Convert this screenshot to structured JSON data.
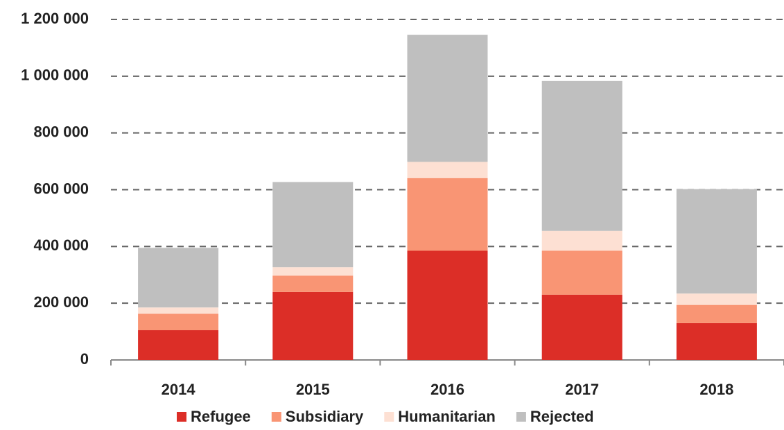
{
  "chart_data": {
    "type": "stacked_bar",
    "categories": [
      "2014",
      "2015",
      "2016",
      "2017",
      "2018"
    ],
    "series": [
      {
        "name": "Refugee",
        "color": "#dc2e27",
        "values": [
          105000,
          240000,
          385000,
          230000,
          130000
        ]
      },
      {
        "name": "Subsidiary",
        "color": "#f99574",
        "values": [
          58000,
          57000,
          256000,
          155000,
          64000
        ]
      },
      {
        "name": "Humanitarian",
        "color": "#fde0d3",
        "values": [
          22000,
          30000,
          57000,
          70000,
          40000
        ]
      },
      {
        "name": "Rejected",
        "color": "#bfbfbf",
        "values": [
          210000,
          300000,
          448000,
          528000,
          368000
        ]
      }
    ],
    "ylim": [
      0,
      1200000
    ],
    "yticks": [
      0,
      {
        "value": 200000,
        "label": "200 000"
      },
      {
        "value": 400000,
        "label": "400 000"
      },
      {
        "value": 600000,
        "label": "600 000"
      },
      {
        "value": 800000,
        "label": "800 000"
      },
      {
        "value": 1000000,
        "label": "1 000 000"
      },
      {
        "value": 1200000,
        "label": "1 200 000"
      }
    ],
    "grid": true,
    "legend": "bottom"
  }
}
